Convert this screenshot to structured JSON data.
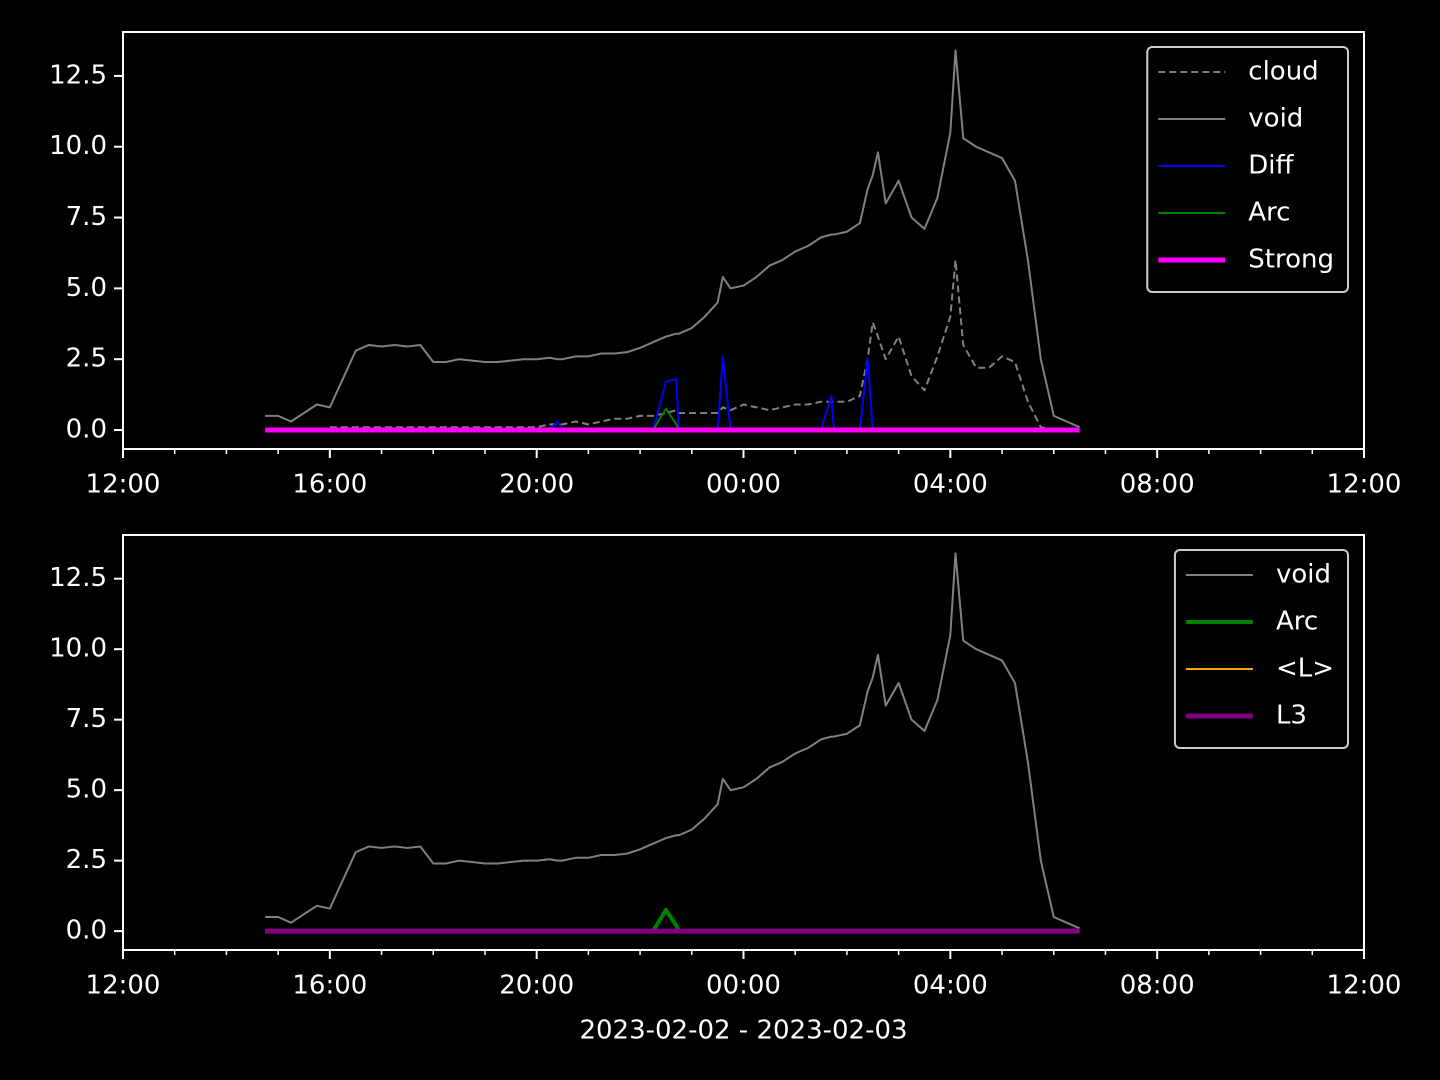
{
  "chart_data": [
    {
      "type": "line",
      "x": [
        14.75,
        15,
        15.25,
        15.5,
        15.75,
        16,
        16.25,
        16.5,
        16.75,
        17,
        17.25,
        17.5,
        17.75,
        18,
        18.25,
        18.5,
        18.75,
        19,
        19.25,
        19.5,
        19.75,
        20,
        20.25,
        20.4,
        20.5,
        20.75,
        21,
        21.25,
        21.5,
        21.75,
        22,
        22.25,
        22.5,
        22.7,
        22.75,
        23,
        23.25,
        23.5,
        23.6,
        23.75,
        24,
        24.25,
        24.5,
        24.75,
        25,
        25.25,
        25.5,
        25.7,
        25.75,
        26,
        26.25,
        26.4,
        26.5,
        26.6,
        26.75,
        27,
        27.25,
        27.5,
        27.75,
        28,
        28.1,
        28.25,
        28.5,
        28.75,
        29,
        29.25,
        29.5,
        29.75,
        30,
        30.25,
        30.5
      ],
      "series": [
        {
          "name": "cloud",
          "color": "#808080",
          "linestyle": "dashed",
          "linewidth": 2,
          "values": [
            null,
            null,
            null,
            null,
            null,
            0.1,
            0.1,
            0.1,
            0.1,
            0.1,
            0.1,
            0.1,
            0.1,
            0.1,
            0.1,
            0.1,
            0.1,
            0.1,
            0.1,
            0.1,
            0.1,
            0.1,
            0.2,
            0.2,
            0.2,
            0.3,
            0.2,
            0.3,
            0.4,
            0.4,
            0.5,
            0.5,
            0.6,
            0.7,
            0.6,
            0.6,
            0.6,
            0.6,
            0.8,
            0.7,
            0.9,
            0.8,
            0.7,
            0.8,
            0.9,
            0.9,
            1.0,
            1.0,
            1.0,
            1.0,
            1.2,
            2.5,
            3.8,
            3.3,
            2.5,
            3.3,
            1.9,
            1.4,
            2.6,
            4.0,
            6.0,
            3.0,
            2.2,
            2.2,
            2.6,
            2.4,
            1.0,
            0.1,
            0,
            0,
            0
          ]
        },
        {
          "name": "void",
          "color": "#808080",
          "linestyle": "solid",
          "linewidth": 2,
          "values": [
            0.5,
            0.5,
            0.3,
            0.6,
            0.9,
            0.8,
            1.8,
            2.8,
            3.0,
            2.95,
            3.0,
            2.95,
            3.0,
            2.4,
            2.4,
            2.5,
            2.45,
            2.4,
            2.4,
            2.45,
            2.5,
            2.5,
            2.55,
            2.5,
            2.5,
            2.6,
            2.6,
            2.7,
            2.7,
            2.75,
            2.9,
            3.1,
            3.3,
            3.4,
            3.4,
            3.6,
            4.0,
            4.5,
            5.4,
            5.0,
            5.1,
            5.4,
            5.8,
            6.0,
            6.3,
            6.5,
            6.8,
            6.9,
            6.9,
            7.0,
            7.3,
            8.5,
            9.0,
            9.8,
            8.0,
            8.8,
            7.5,
            7.1,
            8.2,
            10.5,
            13.4,
            10.3,
            10.0,
            9.8,
            9.6,
            8.8,
            6.0,
            2.5,
            0.5,
            0.3,
            0.1
          ]
        },
        {
          "name": "Diff",
          "color": "#0000ff",
          "linestyle": "solid",
          "linewidth": 2,
          "values": [
            0,
            0,
            0,
            0,
            0,
            0,
            0,
            0,
            0,
            0,
            0,
            0,
            0,
            0,
            0,
            0,
            0,
            0,
            0,
            0,
            0,
            0,
            0,
            0.3,
            0,
            0,
            0,
            0,
            0,
            0,
            0,
            0,
            1.7,
            1.8,
            0,
            0,
            0,
            0,
            2.6,
            0,
            0,
            0,
            0,
            0,
            0,
            0,
            0,
            1.2,
            0,
            0,
            0,
            2.5,
            0,
            0,
            0,
            0,
            0,
            0,
            0,
            0,
            0,
            0,
            0,
            0,
            0,
            0,
            0,
            0,
            0,
            0,
            0
          ]
        },
        {
          "name": "Arc",
          "color": "#008000",
          "linestyle": "solid",
          "linewidth": 2,
          "values": [
            0,
            0,
            0,
            0,
            0,
            0,
            0,
            0,
            0,
            0,
            0,
            0,
            0,
            0,
            0,
            0,
            0,
            0,
            0,
            0,
            0,
            0,
            0,
            0,
            0,
            0,
            0,
            0,
            0,
            0,
            0,
            0,
            0.75,
            0.2,
            0,
            0,
            0,
            0,
            0,
            0,
            0,
            0,
            0,
            0,
            0,
            0,
            0,
            0,
            0,
            0,
            0,
            0,
            0,
            0,
            0,
            0,
            0,
            0,
            0,
            0,
            0,
            0,
            0,
            0,
            0,
            0,
            0,
            0,
            0,
            0,
            0
          ]
        },
        {
          "name": "Strong",
          "color": "#ff00ff",
          "linestyle": "solid",
          "linewidth": 5,
          "values": [
            0,
            0,
            0,
            0,
            0,
            0,
            0,
            0,
            0,
            0,
            0,
            0,
            0,
            0,
            0,
            0,
            0,
            0,
            0,
            0,
            0,
            0,
            0,
            0,
            0,
            0,
            0,
            0,
            0,
            0,
            0,
            0,
            0,
            0,
            0,
            0,
            0,
            0,
            0,
            0,
            0,
            0,
            0,
            0,
            0,
            0,
            0,
            0,
            0,
            0,
            0,
            0,
            0,
            0,
            0,
            0,
            0,
            0,
            0,
            0,
            0,
            0,
            0,
            0,
            0,
            0,
            0,
            0,
            0,
            0,
            0
          ]
        }
      ],
      "xlim": [
        12,
        36
      ],
      "xticks": [
        {
          "value": 12,
          "label": "12:00"
        },
        {
          "value": 16,
          "label": "16:00"
        },
        {
          "value": 20,
          "label": "20:00"
        },
        {
          "value": 24,
          "label": "00:00"
        },
        {
          "value": 28,
          "label": "04:00"
        },
        {
          "value": 32,
          "label": "08:00"
        },
        {
          "value": 36,
          "label": "12:00"
        }
      ],
      "ylim": [
        -0.67,
        14.05
      ],
      "yticks": [
        {
          "value": 0,
          "label": "0.0"
        },
        2.5,
        {
          "value": 5,
          "label": "5.0"
        },
        7.5,
        {
          "value": 10,
          "label": "10.0"
        },
        12.5
      ],
      "legend": "upper right"
    },
    {
      "type": "line",
      "x": [
        14.75,
        15,
        15.25,
        15.5,
        15.75,
        16,
        16.25,
        16.5,
        16.75,
        17,
        17.25,
        17.5,
        17.75,
        18,
        18.25,
        18.5,
        18.75,
        19,
        19.25,
        19.5,
        19.75,
        20,
        20.25,
        20.4,
        20.5,
        20.75,
        21,
        21.25,
        21.5,
        21.75,
        22,
        22.25,
        22.5,
        22.7,
        22.75,
        23,
        23.25,
        23.5,
        23.6,
        23.75,
        24,
        24.25,
        24.5,
        24.75,
        25,
        25.25,
        25.5,
        25.7,
        25.75,
        26,
        26.25,
        26.4,
        26.5,
        26.6,
        26.75,
        27,
        27.25,
        27.5,
        27.75,
        28,
        28.1,
        28.25,
        28.5,
        28.75,
        29,
        29.25,
        29.5,
        29.75,
        30,
        30.25,
        30.5
      ],
      "series": [
        {
          "name": "void",
          "color": "#808080",
          "linestyle": "solid",
          "linewidth": 2,
          "values": [
            0.5,
            0.5,
            0.3,
            0.6,
            0.9,
            0.8,
            1.8,
            2.8,
            3.0,
            2.95,
            3.0,
            2.95,
            3.0,
            2.4,
            2.4,
            2.5,
            2.45,
            2.4,
            2.4,
            2.45,
            2.5,
            2.5,
            2.55,
            2.5,
            2.5,
            2.6,
            2.6,
            2.7,
            2.7,
            2.75,
            2.9,
            3.1,
            3.3,
            3.4,
            3.4,
            3.6,
            4.0,
            4.5,
            5.4,
            5.0,
            5.1,
            5.4,
            5.8,
            6.0,
            6.3,
            6.5,
            6.8,
            6.9,
            6.9,
            7.0,
            7.3,
            8.5,
            9.0,
            9.8,
            8.0,
            8.8,
            7.5,
            7.1,
            8.2,
            10.5,
            13.4,
            10.3,
            10.0,
            9.8,
            9.6,
            8.8,
            6.0,
            2.5,
            0.5,
            0.3,
            0.1
          ]
        },
        {
          "name": "Arc",
          "color": "#008000",
          "linestyle": "solid",
          "linewidth": 4,
          "values": [
            0,
            0,
            0,
            0,
            0,
            0,
            0,
            0,
            0,
            0,
            0,
            0,
            0,
            0,
            0,
            0,
            0,
            0,
            0,
            0,
            0,
            0,
            0,
            0,
            0,
            0,
            0,
            0,
            0,
            0,
            0,
            0,
            0.75,
            0.2,
            0,
            0,
            0,
            0,
            0,
            0,
            0,
            0,
            0,
            0,
            0,
            0,
            0,
            0,
            0,
            0,
            0,
            0,
            0,
            0,
            0,
            0,
            0,
            0,
            0,
            0,
            0,
            0,
            0,
            0,
            0,
            0,
            0,
            0,
            0,
            0,
            0
          ]
        },
        {
          "name": "<L>",
          "color": "#ffa500",
          "linestyle": "solid",
          "linewidth": 2,
          "values": [
            0,
            0,
            0,
            0,
            0,
            0,
            0,
            0,
            0,
            0,
            0,
            0,
            0,
            0,
            0,
            0,
            0,
            0,
            0,
            0,
            0,
            0,
            0,
            0,
            0,
            0,
            0,
            0,
            0,
            0,
            0,
            0,
            0,
            0,
            0,
            0,
            0,
            0,
            0,
            0,
            0,
            0,
            0,
            0,
            0,
            0,
            0,
            0,
            0,
            0,
            0,
            0,
            0,
            0,
            0,
            0,
            0,
            0,
            0,
            0,
            0,
            0,
            0,
            0,
            0,
            0,
            0,
            0,
            0,
            0,
            0
          ]
        },
        {
          "name": "L3",
          "color": "#800080",
          "linestyle": "solid",
          "linewidth": 5,
          "values": [
            0,
            0,
            0,
            0,
            0,
            0,
            0,
            0,
            0,
            0,
            0,
            0,
            0,
            0,
            0,
            0,
            0,
            0,
            0,
            0,
            0,
            0,
            0,
            0,
            0,
            0,
            0,
            0,
            0,
            0,
            0,
            0,
            0,
            0,
            0,
            0,
            0,
            0,
            0,
            0,
            0,
            0,
            0,
            0,
            0,
            0,
            0,
            0,
            0,
            0,
            0,
            0,
            0,
            0,
            0,
            0,
            0,
            0,
            0,
            0,
            0,
            0,
            0,
            0,
            0,
            0,
            0,
            0,
            0,
            0,
            0
          ]
        }
      ],
      "xlim": [
        12,
        36
      ],
      "xticks": [
        {
          "value": 12,
          "label": "12:00"
        },
        {
          "value": 16,
          "label": "16:00"
        },
        {
          "value": 20,
          "label": "20:00"
        },
        {
          "value": 24,
          "label": "00:00"
        },
        {
          "value": 28,
          "label": "04:00"
        },
        {
          "value": 32,
          "label": "08:00"
        },
        {
          "value": 36,
          "label": "12:00"
        }
      ],
      "ylim": [
        -0.67,
        14.05
      ],
      "yticks": [
        {
          "value": 0,
          "label": "0.0"
        },
        2.5,
        {
          "value": 5,
          "label": "5.0"
        },
        7.5,
        {
          "value": 10,
          "label": "10.0"
        },
        12.5
      ],
      "xlabel": "2023-02-02 - 2023-02-03",
      "legend": "upper right"
    }
  ]
}
